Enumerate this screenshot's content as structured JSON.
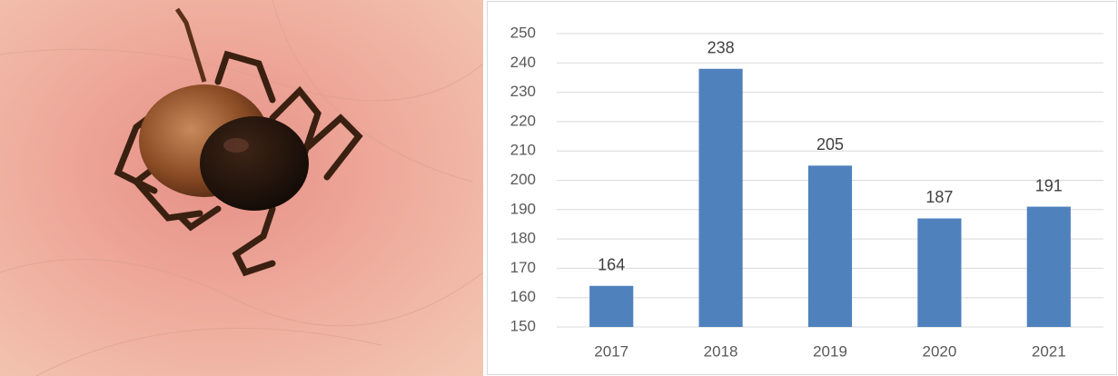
{
  "chart_data": {
    "type": "bar",
    "categories": [
      "2017",
      "2018",
      "2019",
      "2020",
      "2021"
    ],
    "values": [
      164,
      238,
      205,
      187,
      191
    ],
    "color": "#4f81bd",
    "ylim": [
      150,
      250
    ],
    "yticks": [
      150,
      160,
      170,
      180,
      190,
      200,
      210,
      220,
      230,
      240,
      250
    ],
    "grid": true
  }
}
